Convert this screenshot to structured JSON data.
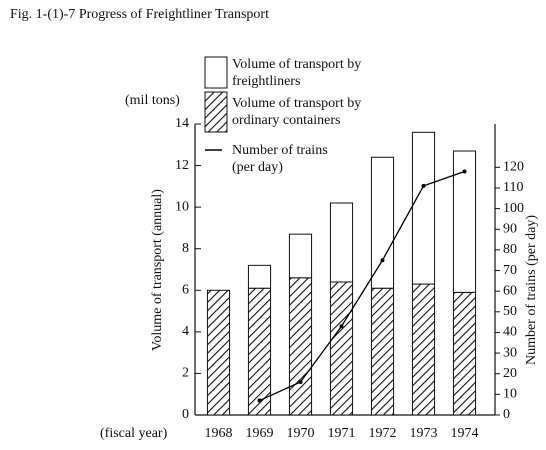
{
  "chart_data": {
    "type": "bar",
    "title": "Fig. 1-(1)-7  Progress of Freightliner Transport",
    "y_unit": "(mil tons)",
    "y_label": "Volume of transport (annual)",
    "y2_label": "Number of trains (per day)",
    "x_label": "(fiscal year)",
    "categories": [
      "1968",
      "1969",
      "1970",
      "1971",
      "1972",
      "1973",
      "1974"
    ],
    "series": [
      {
        "name": "Volume of transport by freightliners",
        "color": "#ffffff",
        "values": [
          0,
          1.1,
          2.1,
          3.8,
          6.3,
          7.3,
          6.8
        ]
      },
      {
        "name": "Volume of transport by ordinary containers",
        "color": "#000000",
        "pattern": "hatch",
        "values": [
          6.0,
          6.1,
          6.6,
          6.4,
          6.1,
          6.3,
          5.9
        ]
      },
      {
        "name": "Number of trains (per day)",
        "type": "line",
        "axis": "y2",
        "color": "#000000",
        "values": [
          null,
          7,
          16,
          43,
          75,
          111,
          118
        ]
      }
    ],
    "ylim": [
      0,
      14
    ],
    "yticks": [
      0,
      2,
      4,
      6,
      8,
      10,
      12,
      14
    ],
    "y2lim": [
      0,
      141
    ],
    "y2ticks": [
      0,
      10,
      20,
      30,
      40,
      50,
      60,
      70,
      80,
      90,
      100,
      110,
      120
    ]
  }
}
